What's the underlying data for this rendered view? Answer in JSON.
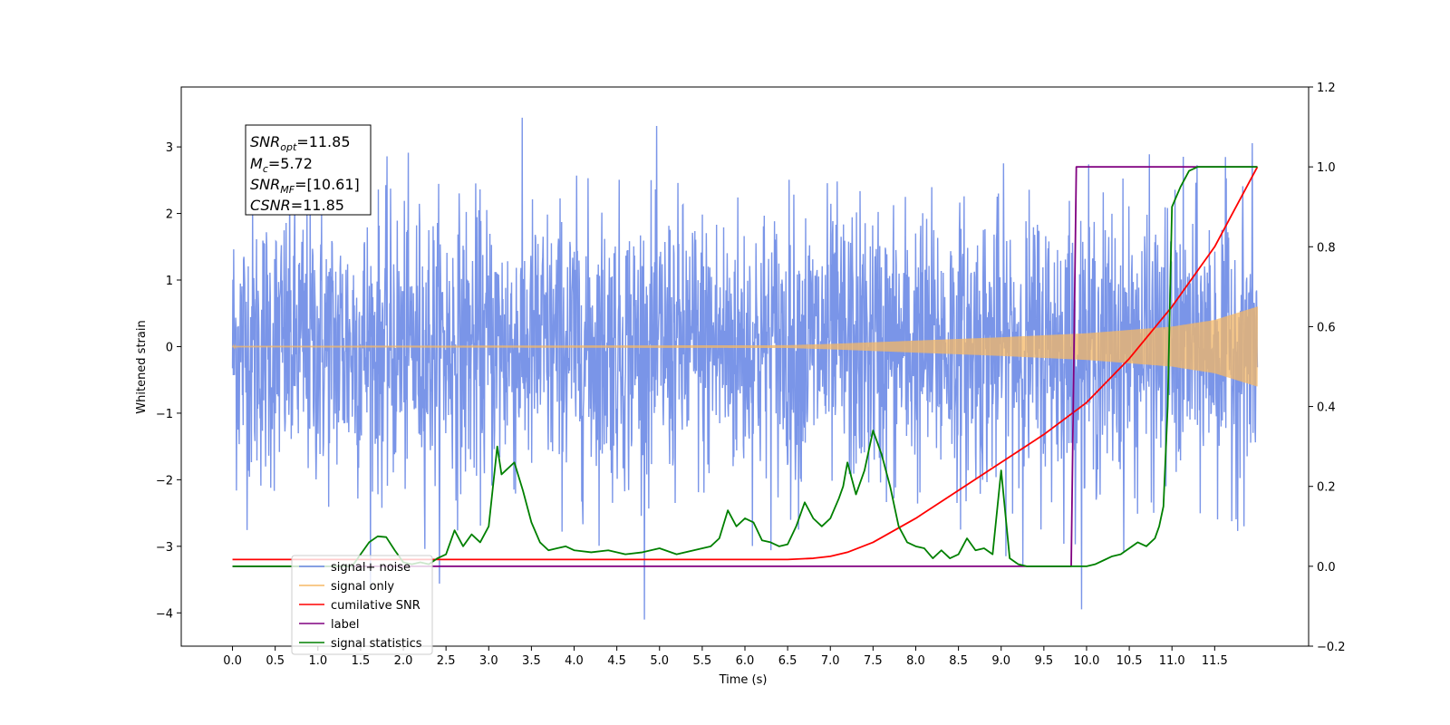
{
  "chart_data": {
    "type": "line",
    "title": "",
    "xlabel": "Time (s)",
    "ylabel": "Whitened strain",
    "xlim": [
      -0.6,
      12.6
    ],
    "ylim_left": [
      -4.5,
      3.9
    ],
    "ylim_right": [
      -0.2,
      1.2
    ],
    "x_ticks": [
      "0.0",
      "0.5",
      "1.0",
      "1.5",
      "2.0",
      "2.5",
      "3.0",
      "3.5",
      "4.0",
      "4.5",
      "5.0",
      "5.5",
      "6.0",
      "6.5",
      "7.0",
      "7.5",
      "8.0",
      "8.5",
      "9.0",
      "9.5",
      "10.0",
      "10.5",
      "11.0",
      "11.5"
    ],
    "y_ticks_left": [
      "−4",
      "−3",
      "−2",
      "−1",
      "0",
      "1",
      "2",
      "3"
    ],
    "y_ticks_right": [
      "−0.2",
      "0.0",
      "0.2",
      "0.4",
      "0.6",
      "0.8",
      "1.0",
      "1.2"
    ],
    "grid": false,
    "legend_position": "lower-left",
    "annotation": {
      "snr_opt": "=11.85",
      "mc": "=5.72",
      "snr_mf": "=[10.61]",
      "csnr": "=11.85"
    },
    "series": [
      {
        "name": "signal+ noise",
        "axis": "left",
        "color": "#6b8ae6",
        "description_values": "whitened noise + signal, amplitude ~±2.4 with spikes to 3.6 / -4.1",
        "x_range": [
          0,
          12.0
        ]
      },
      {
        "name": "signal only",
        "axis": "left",
        "color": "#f5b865",
        "x_range": [
          0,
          12.0
        ],
        "envelope": {
          "x": [
            0,
            6.5,
            7.0,
            8.0,
            9.0,
            10.0,
            11.0,
            11.5,
            12.0
          ],
          "amp": [
            0.01,
            0.02,
            0.04,
            0.09,
            0.14,
            0.2,
            0.3,
            0.4,
            0.6
          ]
        }
      },
      {
        "name": "cumilative SNR",
        "axis": "right",
        "color": "#ff0000",
        "x": [
          0,
          6.5,
          6.8,
          7.0,
          7.2,
          7.5,
          8.0,
          8.5,
          9.0,
          9.5,
          10.0,
          10.5,
          11.0,
          11.5,
          12.0
        ],
        "values": [
          0.017,
          0.017,
          0.02,
          0.025,
          0.035,
          0.06,
          0.12,
          0.19,
          0.26,
          0.33,
          0.41,
          0.52,
          0.65,
          0.8,
          1.0
        ]
      },
      {
        "name": "label",
        "axis": "right",
        "color": "#800080",
        "x": [
          0,
          9.82,
          9.88,
          12.0
        ],
        "values": [
          0.0,
          0.0,
          1.0,
          1.0
        ]
      },
      {
        "name": "signal statistics",
        "axis": "right",
        "color": "#008000",
        "x": [
          0,
          1.4,
          1.5,
          1.6,
          1.7,
          1.8,
          1.9,
          2.0,
          2.1,
          2.2,
          2.3,
          2.4,
          2.5,
          2.6,
          2.7,
          2.8,
          2.9,
          3.0,
          3.1,
          3.15,
          3.2,
          3.3,
          3.4,
          3.5,
          3.6,
          3.7,
          3.8,
          3.9,
          4.0,
          4.2,
          4.4,
          4.6,
          4.8,
          5.0,
          5.2,
          5.4,
          5.6,
          5.7,
          5.8,
          5.9,
          6.0,
          6.1,
          6.2,
          6.3,
          6.4,
          6.5,
          6.6,
          6.7,
          6.8,
          6.9,
          7.0,
          7.1,
          7.15,
          7.2,
          7.3,
          7.4,
          7.5,
          7.6,
          7.7,
          7.8,
          7.9,
          8.0,
          8.1,
          8.2,
          8.3,
          8.4,
          8.5,
          8.6,
          8.7,
          8.8,
          8.9,
          9.0,
          9.1,
          9.2,
          9.3,
          9.5,
          9.8,
          10.0,
          10.1,
          10.2,
          10.3,
          10.4,
          10.5,
          10.6,
          10.7,
          10.8,
          10.85,
          10.9,
          10.95,
          11.0,
          11.1,
          11.2,
          11.3,
          11.5,
          12.0
        ],
        "values": [
          0.0,
          0.0,
          0.03,
          0.06,
          0.075,
          0.073,
          0.04,
          0.01,
          0.005,
          0.01,
          0.005,
          0.02,
          0.03,
          0.09,
          0.05,
          0.08,
          0.06,
          0.1,
          0.3,
          0.23,
          0.24,
          0.26,
          0.19,
          0.11,
          0.06,
          0.04,
          0.045,
          0.05,
          0.04,
          0.035,
          0.04,
          0.03,
          0.035,
          0.045,
          0.03,
          0.04,
          0.05,
          0.07,
          0.14,
          0.1,
          0.12,
          0.11,
          0.065,
          0.06,
          0.05,
          0.055,
          0.1,
          0.16,
          0.12,
          0.1,
          0.12,
          0.17,
          0.2,
          0.26,
          0.18,
          0.24,
          0.34,
          0.28,
          0.2,
          0.1,
          0.06,
          0.05,
          0.045,
          0.02,
          0.04,
          0.02,
          0.03,
          0.07,
          0.04,
          0.045,
          0.03,
          0.24,
          0.02,
          0.005,
          0.0,
          0.0,
          0.0,
          0.0,
          0.005,
          0.015,
          0.025,
          0.03,
          0.045,
          0.06,
          0.05,
          0.07,
          0.1,
          0.15,
          0.4,
          0.9,
          0.95,
          0.99,
          1.0,
          1.0,
          1.0
        ]
      }
    ]
  },
  "legend": [
    {
      "label": "signal+ noise",
      "color": "#6b8ae6"
    },
    {
      "label": "signal only",
      "color": "#f5b865"
    },
    {
      "label": "cumilative SNR",
      "color": "#ff0000"
    },
    {
      "label": "label",
      "color": "#800080"
    },
    {
      "label": "signal statistics",
      "color": "#008000"
    }
  ]
}
